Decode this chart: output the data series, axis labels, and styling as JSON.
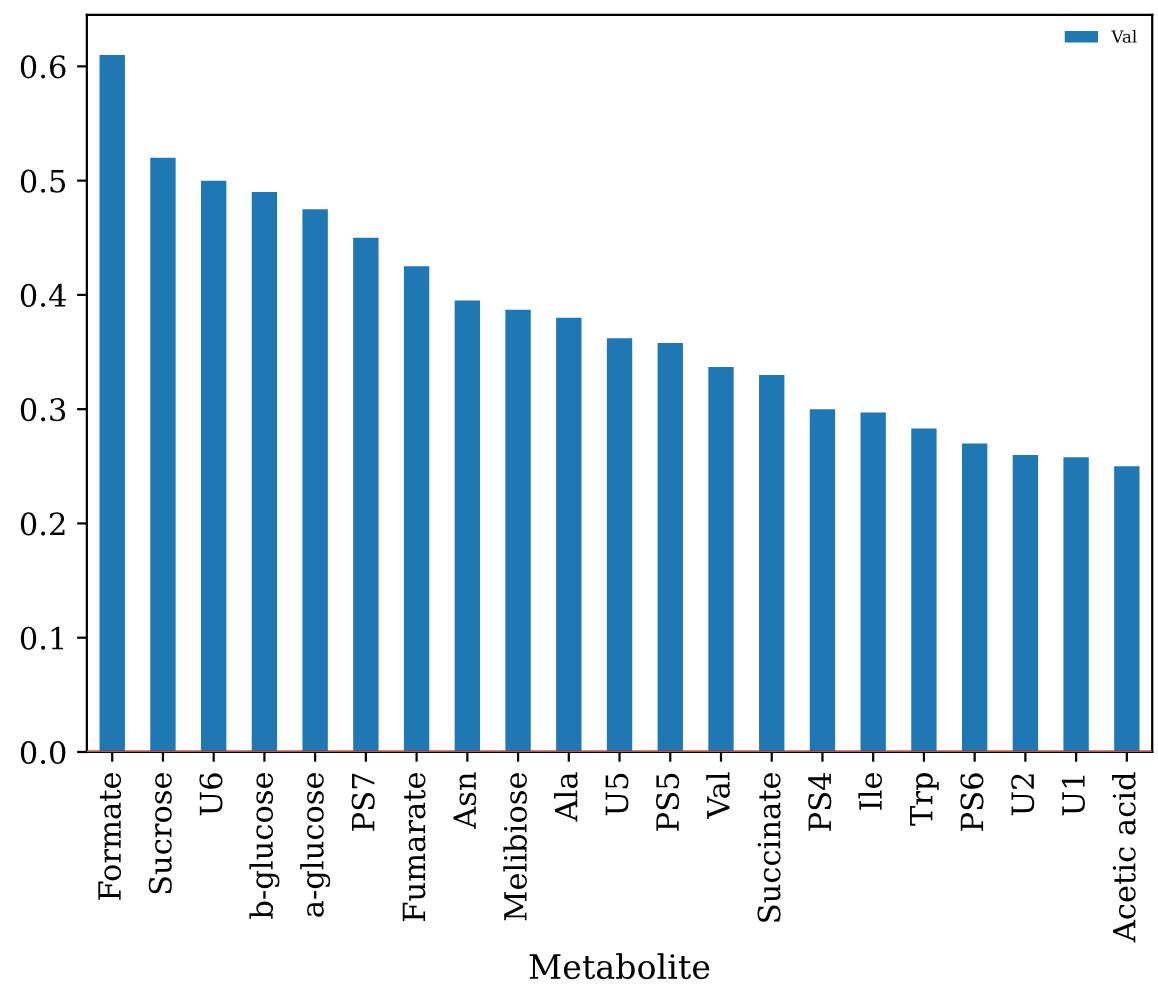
{
  "chart_data": {
    "type": "bar",
    "xlabel": "Metabolite",
    "categories": [
      "Formate",
      "Sucrose",
      "U6",
      "b-glucose",
      "a-glucose",
      "PS7",
      "Fumarate",
      "Asn",
      "Melibiose",
      "Ala",
      "U5",
      "PS5",
      "Val",
      "Succinate",
      "PS4",
      "Ile",
      "Trp",
      "PS6",
      "U2",
      "U1",
      "Acetic acid"
    ],
    "series": [
      {
        "name": "Val",
        "color": "#1f77b4",
        "values": [
          0.61,
          0.52,
          0.5,
          0.49,
          0.475,
          0.45,
          0.425,
          0.395,
          0.387,
          0.38,
          0.362,
          0.358,
          0.337,
          0.33,
          0.3,
          0.297,
          0.283,
          0.27,
          0.26,
          0.258,
          0.25
        ]
      }
    ],
    "ylim": [
      0,
      0.645
    ],
    "yticks": [
      {
        "value": 0,
        "label": "0.0"
      },
      0.1,
      0.2,
      0.3,
      0.4,
      0.5,
      0.6
    ],
    "ref_lines": [
      {
        "axis": "y",
        "value": 0,
        "color": "#c0504d"
      }
    ],
    "legend": "top right",
    "grid": false
  }
}
